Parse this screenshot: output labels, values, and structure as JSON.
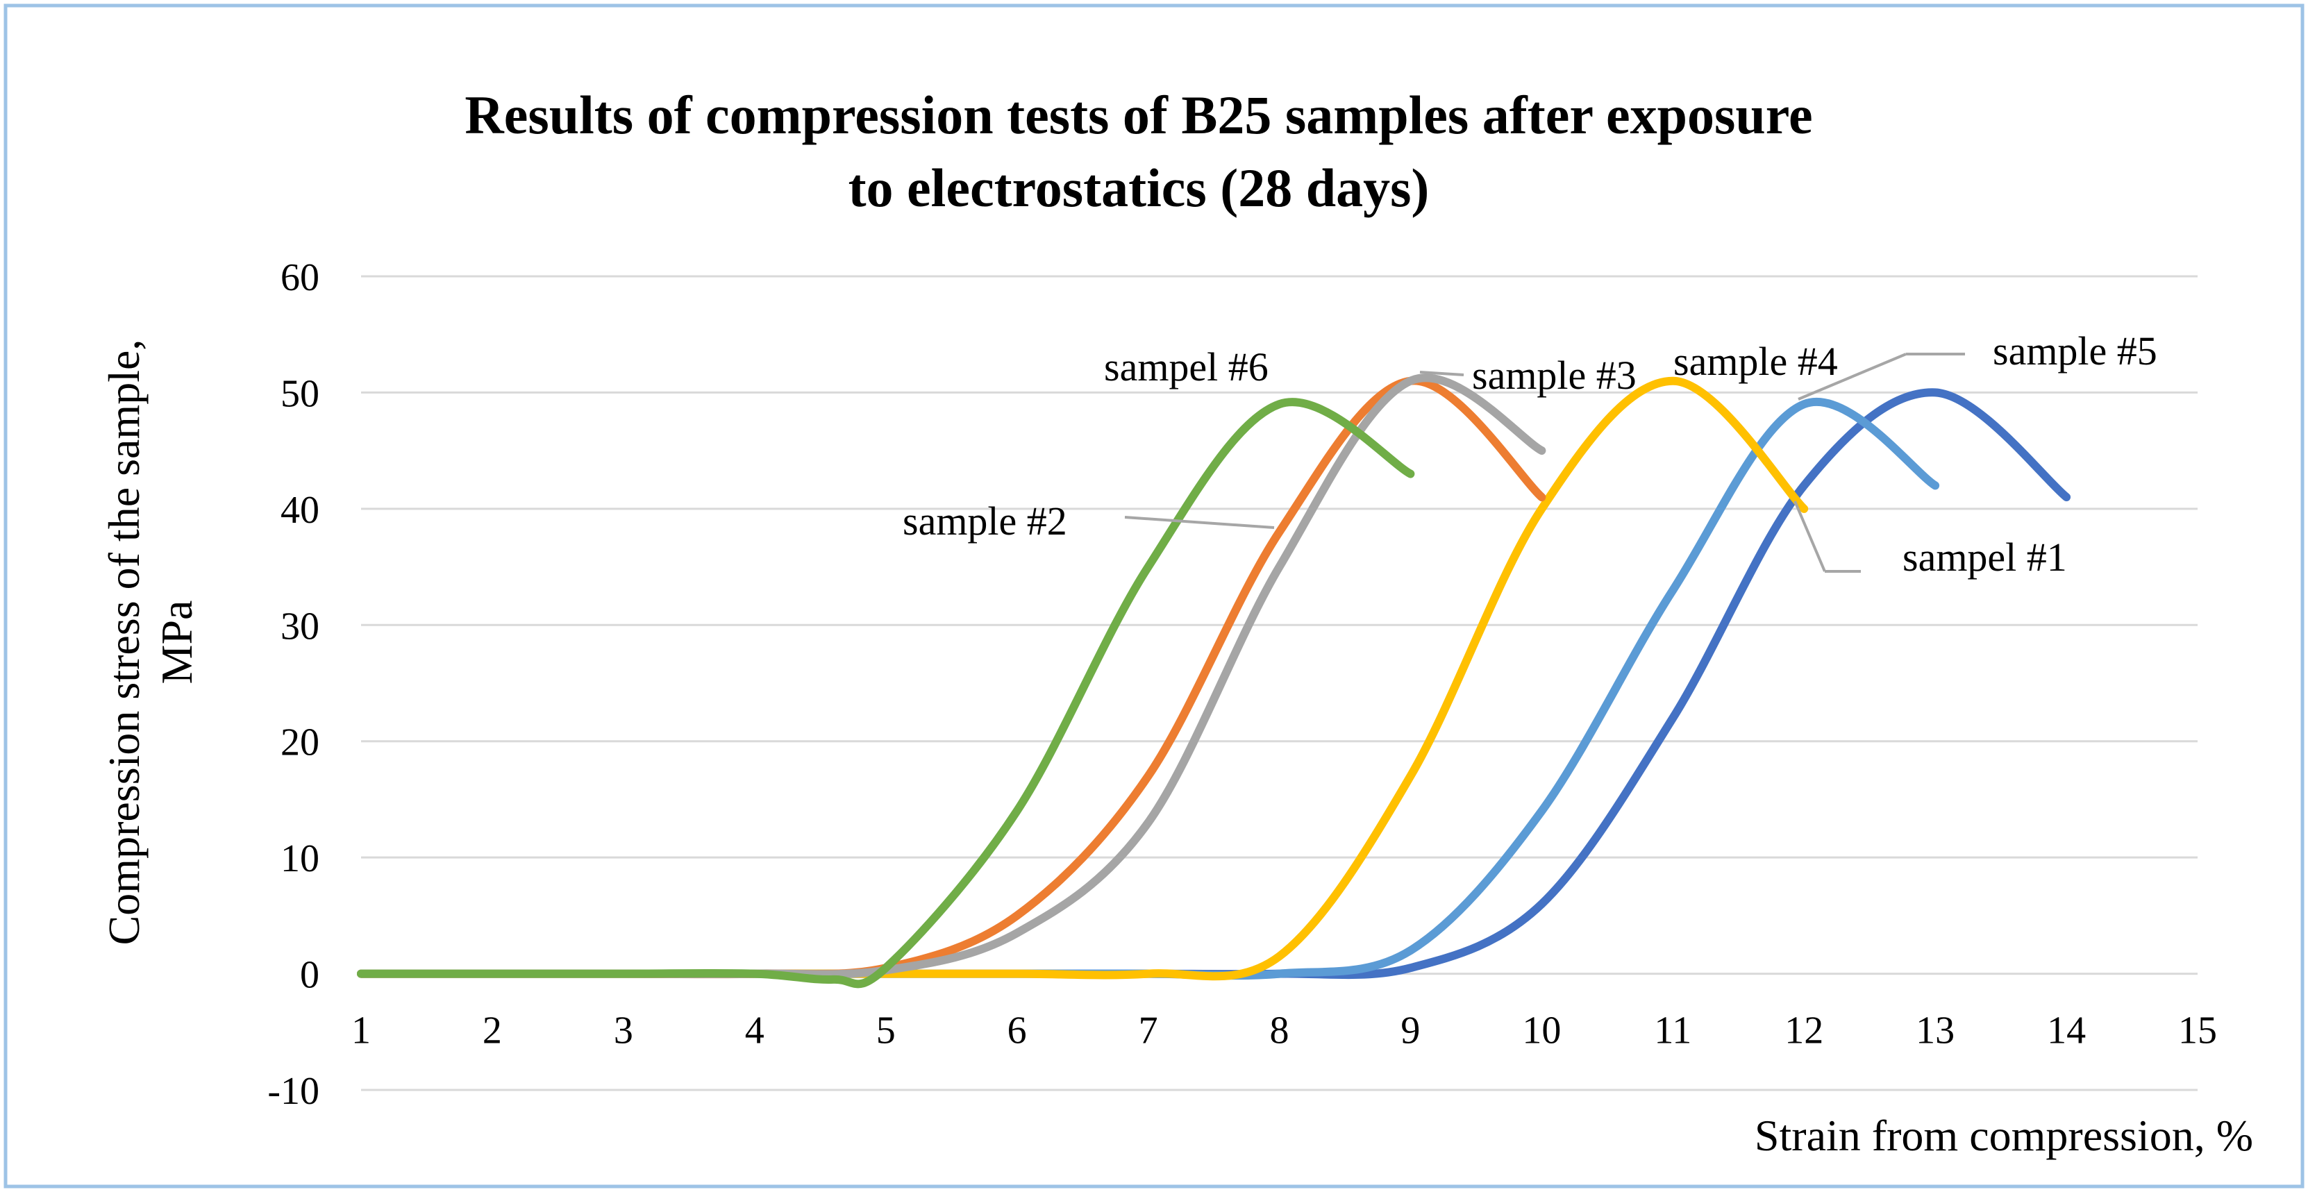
{
  "chart_data": {
    "type": "line",
    "title_lines": [
      "Results of compression tests of B25 samples after exposure",
      "to electrostatics (28 days)"
    ],
    "xlabel": "Strain from compression, %",
    "ylabel_lines": [
      "Compression stress of the sample,",
      "MPa"
    ],
    "xlim": [
      1,
      15
    ],
    "ylim": [
      -10,
      60
    ],
    "x_ticks": [
      "1",
      "2",
      "3",
      "4",
      "5",
      "6",
      "7",
      "8",
      "9",
      "10",
      "11",
      "12",
      "13",
      "14",
      "15"
    ],
    "y_ticks": [
      "-10",
      "0",
      "10",
      "20",
      "30",
      "40",
      "50",
      "60"
    ],
    "grid": true,
    "series": [
      {
        "name": "sampel #1",
        "color": "#4472c4",
        "x": [
          1,
          2,
          3,
          4,
          5,
          6,
          7,
          8,
          9,
          10,
          11,
          12,
          13,
          14
        ],
        "values": [
          0,
          0,
          0,
          0,
          0,
          0,
          0,
          0,
          0.5,
          6,
          22,
          42,
          50,
          41
        ]
      },
      {
        "name": "sample #2",
        "color": "#ed7d31",
        "x": [
          1,
          2,
          3,
          4,
          5,
          6,
          7,
          8,
          9,
          10
        ],
        "values": [
          0,
          0,
          0,
          0,
          0.5,
          5,
          17,
          38,
          51,
          41
        ]
      },
      {
        "name": "sample #3",
        "color": "#a5a5a5",
        "x": [
          1,
          2,
          3,
          4,
          5,
          6,
          7,
          8,
          9,
          10
        ],
        "values": [
          0,
          0,
          0,
          0,
          0.3,
          3.5,
          13,
          35,
          51,
          45
        ]
      },
      {
        "name": "sample #4",
        "color": "#ffc000",
        "x": [
          1,
          2,
          3,
          4,
          5,
          6,
          7,
          8,
          9,
          10,
          11,
          12
        ],
        "values": [
          0,
          0,
          0,
          0,
          0,
          0,
          0,
          1.5,
          17,
          40,
          51,
          40
        ]
      },
      {
        "name": "sample #5",
        "color": "#5b9bd5",
        "x": [
          1,
          2,
          3,
          4,
          5,
          6,
          7,
          8,
          9,
          10,
          11,
          12,
          13
        ],
        "values": [
          0,
          0,
          0,
          0,
          0,
          0,
          0,
          0,
          2,
          14,
          33,
          49,
          42
        ]
      },
      {
        "name": "sampel #6",
        "color": "#70ad47",
        "x": [
          1,
          2,
          3,
          4,
          4.6,
          5,
          6,
          7,
          8,
          9
        ],
        "values": [
          0,
          0,
          0,
          0,
          -0.5,
          0.5,
          14,
          35,
          49,
          43
        ]
      }
    ]
  }
}
